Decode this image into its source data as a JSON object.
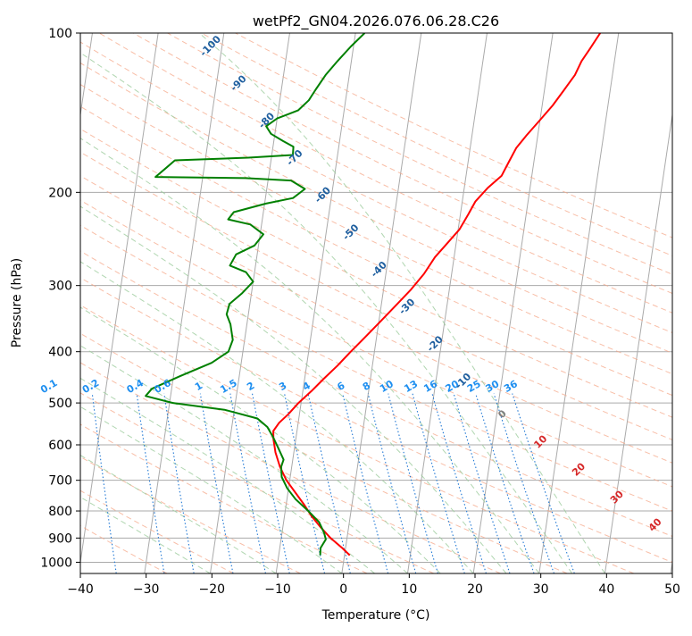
{
  "chart_data": {
    "type": "line",
    "subtype": "skew-T log-P diagram",
    "title": "wetPf2_GN04.2026.076.06.28.C26",
    "xlabel": "Temperature (°C)",
    "ylabel": "Pressure (hPa)",
    "xlim": [
      -40,
      50
    ],
    "ylim": [
      1050,
      100
    ],
    "y_scale": "log",
    "grid": true,
    "x_ticks": [
      -40,
      -30,
      -20,
      -10,
      0,
      10,
      20,
      30,
      40,
      50
    ],
    "y_ticks": [
      100,
      200,
      300,
      400,
      500,
      600,
      700,
      800,
      900,
      1000
    ],
    "series": [
      {
        "role": "temperature",
        "color": "#ff0000",
        "points": [
          [
            0.8,
            970
          ],
          [
            -0.5,
            940
          ],
          [
            -2.5,
            900
          ],
          [
            -4.2,
            860
          ],
          [
            -5.8,
            820
          ],
          [
            -7.2,
            780
          ],
          [
            -8.8,
            740
          ],
          [
            -10.5,
            700
          ],
          [
            -11.8,
            660
          ],
          [
            -12.8,
            620
          ],
          [
            -13.4,
            585
          ],
          [
            -13.6,
            565
          ],
          [
            -12.9,
            545
          ],
          [
            -11.7,
            525
          ],
          [
            -10.4,
            500
          ],
          [
            -8.7,
            475
          ],
          [
            -7.1,
            450
          ],
          [
            -5.3,
            425
          ],
          [
            -3.6,
            400
          ],
          [
            -1.7,
            375
          ],
          [
            0.3,
            350
          ],
          [
            2.4,
            325
          ],
          [
            4.2,
            305
          ],
          [
            5.8,
            285
          ],
          [
            7.1,
            265
          ],
          [
            8.6,
            250
          ],
          [
            10.2,
            235
          ],
          [
            11.2,
            220
          ],
          [
            12.0,
            208
          ],
          [
            13.6,
            196
          ],
          [
            15.4,
            186
          ],
          [
            16.2,
            175
          ],
          [
            17.0,
            165
          ],
          [
            18.3,
            156
          ],
          [
            20.0,
            146
          ],
          [
            21.6,
            137
          ],
          [
            23.0,
            128
          ],
          [
            24.3,
            120
          ],
          [
            25.0,
            113
          ],
          [
            26.0,
            107
          ],
          [
            27.2,
            100
          ]
        ]
      },
      {
        "role": "dewpoint",
        "color": "#008000",
        "points": [
          [
            -3.7,
            970
          ],
          [
            -3.8,
            940
          ],
          [
            -3.2,
            905
          ],
          [
            -3.6,
            880
          ],
          [
            -4.6,
            840
          ],
          [
            -6.5,
            800
          ],
          [
            -8.7,
            760
          ],
          [
            -10.2,
            725
          ],
          [
            -11.3,
            690
          ],
          [
            -11.6,
            660
          ],
          [
            -11.4,
            640
          ],
          [
            -12.4,
            610
          ],
          [
            -13.5,
            580
          ],
          [
            -14.6,
            555
          ],
          [
            -16.3,
            535
          ],
          [
            -21.5,
            515
          ],
          [
            -29.5,
            500
          ],
          [
            -33.8,
            485
          ],
          [
            -33.0,
            470
          ],
          [
            -29.0,
            445
          ],
          [
            -24.5,
            420
          ],
          [
            -22.2,
            400
          ],
          [
            -21.8,
            380
          ],
          [
            -22.5,
            355
          ],
          [
            -23.3,
            340
          ],
          [
            -23.1,
            325
          ],
          [
            -21.4,
            310
          ],
          [
            -20.0,
            295
          ],
          [
            -21.3,
            283
          ],
          [
            -23.9,
            275
          ],
          [
            -23.2,
            262
          ],
          [
            -20.6,
            252
          ],
          [
            -19.5,
            240
          ],
          [
            -21.7,
            230
          ],
          [
            -25.2,
            225
          ],
          [
            -24.5,
            218
          ],
          [
            -19.8,
            210
          ],
          [
            -15.8,
            205
          ],
          [
            -14.2,
            197
          ],
          [
            -16.5,
            190
          ],
          [
            -23.5,
            188
          ],
          [
            -37.2,
            187
          ],
          [
            -35.8,
            180
          ],
          [
            -34.6,
            174
          ],
          [
            -23.5,
            172
          ],
          [
            -16.8,
            170
          ],
          [
            -16.9,
            164
          ],
          [
            -18.6,
            160
          ],
          [
            -20.6,
            155
          ],
          [
            -21.5,
            150
          ],
          [
            -20.0,
            145
          ],
          [
            -17.0,
            140
          ],
          [
            -15.6,
            134
          ],
          [
            -14.8,
            128
          ],
          [
            -13.6,
            120
          ],
          [
            -12.1,
            113
          ],
          [
            -10.4,
            106
          ],
          [
            -8.6,
            100
          ]
        ]
      }
    ],
    "dry_adiabat_labels": [
      "-100",
      "-90",
      "-80",
      "-70",
      "-60",
      "-50",
      "-40",
      "-30",
      "-20",
      "-10"
    ],
    "mixing_ratio_labels": [
      "0.1",
      "0.2",
      "0.4",
      "0.6",
      "1",
      "1.5",
      "2",
      "3",
      "4",
      "6",
      "8",
      "10",
      "13",
      "16",
      "20",
      "25",
      "30",
      "36"
    ],
    "moist_adiabat_labels": [
      "0",
      "10",
      "20",
      "30",
      "40"
    ],
    "colors": {
      "isotherm": "#aaaaaa",
      "dry_adiabat": "#f6a889",
      "moist_adiabat": "#9ccc9c",
      "mixing_ratio": "#1f77d4",
      "mixing_ratio_label": "#1e8ff0",
      "dry_adiabat_label": "#1f5f9f",
      "moist_adiabat_label": "#d62728",
      "moist_zero_label": "#808080",
      "temperature": "#ff0000",
      "dewpoint": "#008000"
    }
  }
}
